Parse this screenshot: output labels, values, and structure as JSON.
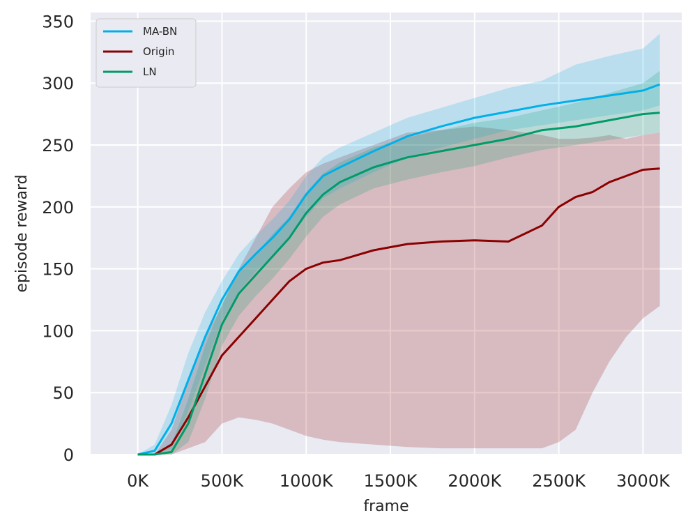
{
  "chart_data": {
    "type": "line",
    "xlabel": "frame",
    "ylabel": "episode reward",
    "xlim": [
      -280000,
      3230000
    ],
    "ylim": [
      0,
      357
    ],
    "x_ticks": [
      {
        "value": 0,
        "label": "0K"
      },
      {
        "value": 500000,
        "label": "500K"
      },
      {
        "value": 1000000,
        "label": "1000K"
      },
      {
        "value": 1500000,
        "label": "1500K"
      },
      {
        "value": 2000000,
        "label": "2000K"
      },
      {
        "value": 2500000,
        "label": "2500K"
      },
      {
        "value": 3000000,
        "label": "3000K"
      }
    ],
    "y_ticks": [
      {
        "value": 0,
        "label": "0"
      },
      {
        "value": 50,
        "label": "50"
      },
      {
        "value": 100,
        "label": "100"
      },
      {
        "value": 150,
        "label": "150"
      },
      {
        "value": 200,
        "label": "200"
      },
      {
        "value": 250,
        "label": "250"
      },
      {
        "value": 300,
        "label": "300"
      },
      {
        "value": 350,
        "label": "350"
      }
    ],
    "grid": true,
    "legend_position": "top-left",
    "series": [
      {
        "name": "MA-BN",
        "color": "#00b0e8",
        "x": [
          0,
          100000,
          200000,
          300000,
          400000,
          500000,
          600000,
          700000,
          800000,
          900000,
          1000000,
          1100000,
          1200000,
          1400000,
          1600000,
          1800000,
          2000000,
          2200000,
          2400000,
          2600000,
          2800000,
          3000000,
          3100000
        ],
        "y": [
          0,
          3,
          25,
          60,
          95,
          125,
          148,
          162,
          175,
          190,
          210,
          225,
          232,
          245,
          257,
          265,
          272,
          277,
          282,
          286,
          290,
          294,
          299
        ],
        "lower": [
          0,
          0,
          5,
          35,
          72,
          108,
          132,
          148,
          160,
          175,
          192,
          207,
          215,
          228,
          240,
          248,
          255,
          262,
          266,
          270,
          274,
          278,
          282
        ],
        "upper": [
          0,
          8,
          40,
          82,
          115,
          140,
          162,
          177,
          190,
          205,
          225,
          240,
          248,
          260,
          272,
          280,
          288,
          296,
          302,
          315,
          322,
          328,
          340
        ]
      },
      {
        "name": "Origin",
        "color": "#8b0000",
        "x": [
          0,
          100000,
          200000,
          300000,
          400000,
          500000,
          600000,
          700000,
          800000,
          900000,
          1000000,
          1100000,
          1200000,
          1400000,
          1600000,
          1800000,
          2000000,
          2200000,
          2400000,
          2500000,
          2600000,
          2700000,
          2800000,
          2900000,
          3000000,
          3100000
        ],
        "y": [
          0,
          0,
          8,
          30,
          55,
          80,
          95,
          110,
          125,
          140,
          150,
          155,
          157,
          165,
          170,
          172,
          173,
          172,
          185,
          200,
          208,
          212,
          220,
          225,
          230,
          231
        ],
        "lower": [
          0,
          0,
          0,
          5,
          10,
          25,
          30,
          28,
          25,
          20,
          15,
          12,
          10,
          8,
          6,
          5,
          5,
          5,
          5,
          10,
          20,
          50,
          75,
          95,
          110,
          120
        ],
        "upper": [
          0,
          0,
          20,
          60,
          95,
          120,
          150,
          175,
          200,
          215,
          228,
          235,
          240,
          250,
          260,
          262,
          265,
          262,
          258,
          255,
          255,
          256,
          258,
          255,
          258,
          260
        ]
      },
      {
        "name": "LN",
        "color": "#009b6a",
        "x": [
          0,
          100000,
          200000,
          300000,
          400000,
          500000,
          600000,
          700000,
          800000,
          900000,
          1000000,
          1100000,
          1200000,
          1400000,
          1600000,
          1800000,
          2000000,
          2200000,
          2400000,
          2600000,
          2800000,
          3000000,
          3100000
        ],
        "y": [
          0,
          0,
          2,
          25,
          65,
          105,
          130,
          145,
          160,
          175,
          195,
          210,
          220,
          232,
          240,
          245,
          250,
          255,
          262,
          265,
          270,
          275,
          276
        ],
        "lower": [
          0,
          0,
          0,
          10,
          45,
          88,
          112,
          128,
          142,
          158,
          176,
          192,
          202,
          215,
          222,
          228,
          233,
          240,
          246,
          250,
          254,
          258,
          260
        ],
        "upper": [
          0,
          0,
          8,
          45,
          88,
          122,
          148,
          162,
          178,
          192,
          212,
          227,
          236,
          248,
          256,
          262,
          268,
          272,
          278,
          284,
          292,
          300,
          310
        ]
      }
    ]
  }
}
